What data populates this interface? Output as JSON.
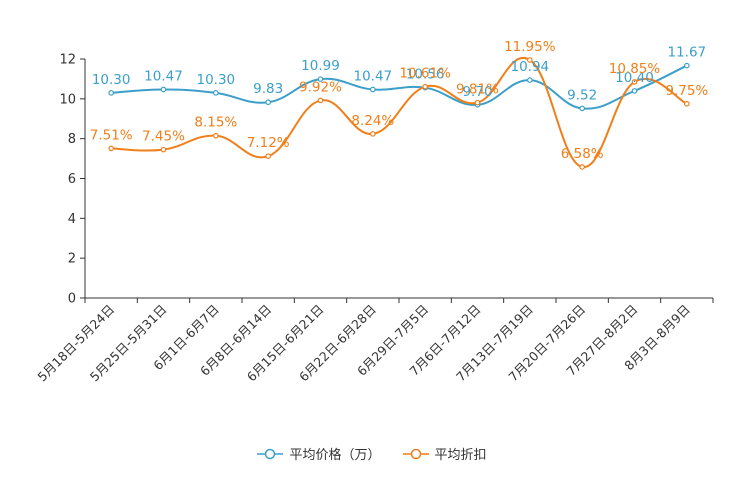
{
  "chart_data": {
    "type": "line",
    "categories": [
      "5月18日-5月24日",
      "5月25日-5月31日",
      "6月1日-6月7日",
      "6月8日-6月14日",
      "6月15日-6月21日",
      "6月22日-6月28日",
      "6月29日-7月5日",
      "7月6日-7月12日",
      "7月13日-7月19日",
      "7月20日-7月26日",
      "7月27日-8月2日",
      "8月3日-8月9日"
    ],
    "series": [
      {
        "name": "平均价格（万）",
        "color": "#3c9fca",
        "values": [
          10.3,
          10.47,
          10.3,
          9.83,
          10.99,
          10.47,
          10.56,
          9.7,
          10.94,
          9.52,
          10.4,
          11.67
        ],
        "labels": [
          "10.30",
          "10.47",
          "10.30",
          "9.83",
          "10.99",
          "10.47",
          "10.56",
          "9.70",
          "10.94",
          "9.52",
          "10.40",
          "11.67"
        ]
      },
      {
        "name": "平均折扣",
        "color": "#f07f1a",
        "values": [
          7.51,
          7.45,
          8.15,
          7.12,
          9.92,
          8.24,
          10.61,
          9.81,
          11.95,
          6.58,
          10.85,
          9.75
        ],
        "labels": [
          "7.51%",
          "7.45%",
          "8.15%",
          "7.12%",
          "9.92%",
          "8.24%",
          "10.61%",
          "9.81%",
          "11.95%",
          "6.58%",
          "10.85%",
          "9.75%"
        ]
      }
    ],
    "yticks": [
      "0",
      "2",
      "4",
      "6",
      "8",
      "10",
      "12"
    ],
    "ylim": [
      0,
      12
    ],
    "title": "",
    "xlabel": "",
    "ylabel": "",
    "legend_position": "bottom"
  }
}
